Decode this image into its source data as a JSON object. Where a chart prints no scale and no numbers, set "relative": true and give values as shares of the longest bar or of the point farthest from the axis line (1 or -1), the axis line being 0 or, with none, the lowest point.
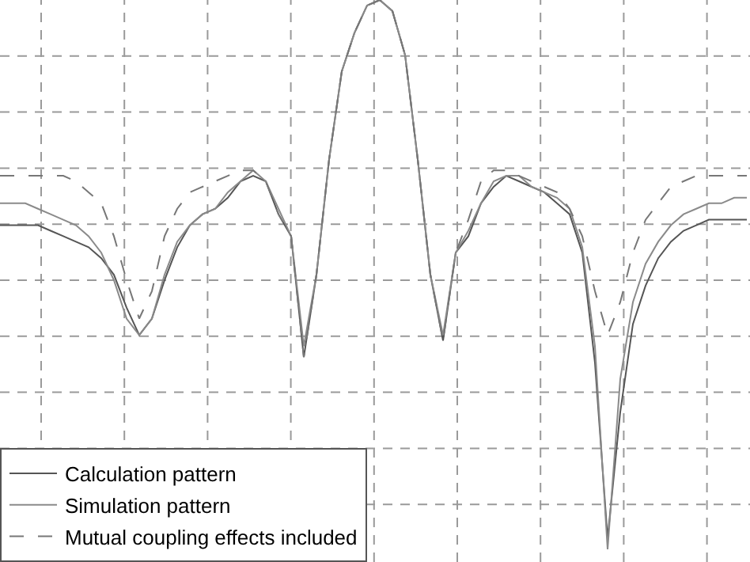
{
  "chart_data": {
    "type": "line",
    "relative": true,
    "grid": true,
    "legend": "bottom left",
    "categories": [
      null,
      null,
      null,
      null,
      null,
      null,
      null,
      null,
      null,
      null,
      null,
      null,
      null,
      null,
      null,
      null,
      null,
      null,
      null,
      null,
      null,
      null,
      null,
      null,
      null,
      null,
      null,
      null,
      null,
      null,
      null,
      null,
      null,
      null,
      null,
      null,
      null,
      null,
      null,
      null,
      null,
      null,
      null,
      null,
      null,
      null,
      null,
      null,
      null,
      null,
      null,
      null,
      null,
      null,
      null,
      null,
      null,
      null,
      null,
      null
    ],
    "series": [
      {
        "name": "Calculation pattern",
        "color": "#555555",
        "line_style": "solid",
        "values": [
          0.59,
          0.59,
          0.59,
          0.59,
          0.58,
          0.57,
          0.56,
          0.55,
          0.53,
          0.5,
          0.44,
          0.39,
          0.42,
          0.49,
          0.55,
          0.59,
          0.61,
          0.62,
          0.64,
          0.67,
          0.68,
          0.67,
          0.61,
          0.57,
          0.35,
          0.5,
          0.71,
          0.87,
          0.94,
          0.99,
          1,
          0.98,
          0.9,
          0.71,
          0.5,
          0.38,
          0.54,
          0.57,
          0.63,
          0.66,
          0.68,
          0.67,
          0.66,
          0.65,
          0.63,
          0.61,
          0.54,
          0.34,
          0.02,
          0.25,
          0.41,
          0.48,
          0.53,
          0.56,
          0.58,
          0.59,
          0.6,
          0.6,
          0.6,
          0.6
        ]
      },
      {
        "name": "Simulation pattern",
        "color": "#8a8a8a",
        "line_style": "solid",
        "values": [
          0.63,
          0.63,
          0.63,
          0.62,
          0.61,
          0.6,
          0.59,
          0.57,
          0.54,
          0.49,
          0.42,
          0.39,
          0.42,
          0.5,
          0.56,
          0.59,
          0.61,
          0.62,
          0.65,
          0.67,
          0.69,
          0.67,
          0.62,
          0.57,
          0.37,
          0.5,
          0.71,
          0.87,
          0.94,
          0.99,
          1,
          0.98,
          0.9,
          0.71,
          0.5,
          0.39,
          0.54,
          0.58,
          0.63,
          0.67,
          0.68,
          0.68,
          0.66,
          0.65,
          0.64,
          0.62,
          0.55,
          0.37,
          0,
          0.31,
          0.45,
          0.52,
          0.56,
          0.59,
          0.61,
          0.62,
          0.63,
          0.63,
          0.64,
          0.64
        ]
      },
      {
        "name": "Mutual coupling effects included",
        "color": "#777777",
        "line_style": "dashed",
        "values": [
          0.68,
          0.68,
          0.68,
          0.68,
          0.68,
          0.68,
          0.67,
          0.65,
          0.63,
          0.57,
          0.49,
          0.42,
          0.47,
          0.57,
          0.62,
          0.65,
          0.66,
          0.67,
          0.68,
          0.69,
          0.69,
          0.67,
          0.61,
          0.57,
          0.35,
          0.5,
          0.71,
          0.87,
          0.94,
          0.99,
          1,
          0.98,
          0.9,
          0.71,
          0.5,
          0.38,
          0.54,
          0.6,
          0.67,
          0.69,
          0.69,
          0.68,
          0.67,
          0.66,
          0.65,
          0.62,
          0.57,
          0.47,
          0.39,
          0.45,
          0.54,
          0.6,
          0.63,
          0.66,
          0.67,
          0.68,
          0.68,
          0.68,
          0.68,
          0.68
        ]
      }
    ]
  }
}
